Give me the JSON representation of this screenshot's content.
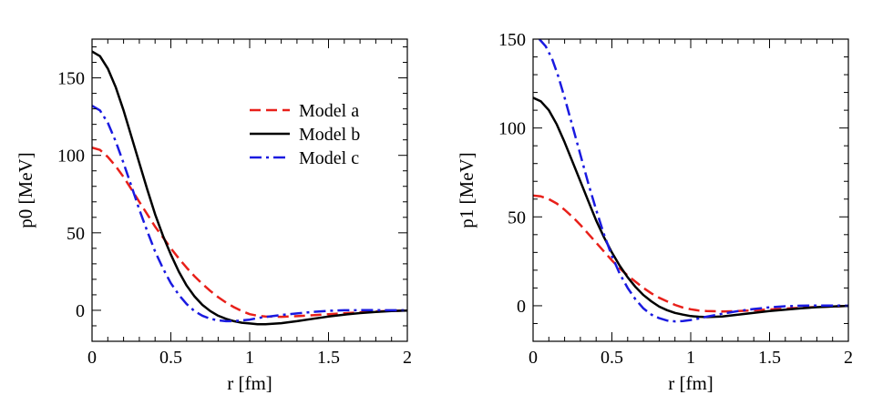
{
  "chart_data": [
    {
      "type": "line",
      "xlabel": "r [fm]",
      "ylabel": "p0 [MeV]",
      "xlim": [
        0,
        2
      ],
      "ylim": [
        -20,
        175
      ],
      "xticks": [
        0,
        0.5,
        1,
        1.5,
        2
      ],
      "xtick_labels": [
        "0",
        "0.5",
        "1",
        "1.5",
        "2"
      ],
      "yticks": [
        0,
        50,
        100,
        150
      ],
      "ytick_labels": [
        "0",
        "50",
        "100",
        "150"
      ],
      "grid": false,
      "legend": {
        "placement": "top-right"
      },
      "series": [
        {
          "name": "Model a",
          "color": "#e8201a",
          "dash": "dashed",
          "x": [
            0,
            0.05,
            0.1,
            0.15,
            0.2,
            0.25,
            0.3,
            0.35,
            0.4,
            0.45,
            0.5,
            0.55,
            0.6,
            0.65,
            0.7,
            0.75,
            0.8,
            0.85,
            0.9,
            0.95,
            1.0,
            1.05,
            1.1,
            1.2,
            1.3,
            1.4,
            1.5,
            1.6,
            1.7,
            1.8,
            1.9,
            2.0
          ],
          "y": [
            105,
            103.5,
            99,
            93,
            86,
            78,
            70,
            62,
            54,
            47,
            40,
            33.5,
            27.5,
            22,
            17,
            12.5,
            8.5,
            5,
            2,
            -0.5,
            -2.5,
            -3.5,
            -4,
            -4.2,
            -3.8,
            -3.2,
            -2.5,
            -1.9,
            -1.3,
            -0.8,
            -0.4,
            -0.1
          ]
        },
        {
          "name": "Model b",
          "color": "#000000",
          "dash": "solid",
          "x": [
            0,
            0.05,
            0.1,
            0.15,
            0.2,
            0.25,
            0.3,
            0.35,
            0.4,
            0.45,
            0.5,
            0.55,
            0.6,
            0.65,
            0.7,
            0.75,
            0.8,
            0.85,
            0.9,
            0.95,
            1.0,
            1.05,
            1.1,
            1.2,
            1.3,
            1.4,
            1.5,
            1.6,
            1.7,
            1.8,
            1.9,
            2.0
          ],
          "y": [
            167,
            164,
            156,
            144,
            129,
            112,
            95,
            78,
            62,
            48,
            36,
            25,
            16,
            9,
            3.5,
            -0.5,
            -3.5,
            -5.5,
            -7,
            -8,
            -8.5,
            -9,
            -9,
            -8.3,
            -7,
            -5.5,
            -4,
            -2.8,
            -1.8,
            -1,
            -0.5,
            -0.2
          ]
        },
        {
          "name": "Model c",
          "color": "#1a1ae0",
          "dash": "dashdot",
          "x": [
            0,
            0.05,
            0.1,
            0.15,
            0.2,
            0.25,
            0.3,
            0.35,
            0.4,
            0.45,
            0.5,
            0.55,
            0.6,
            0.65,
            0.7,
            0.75,
            0.8,
            0.85,
            0.9,
            0.95,
            1.0,
            1.05,
            1.1,
            1.2,
            1.3,
            1.4,
            1.5,
            1.6,
            1.7,
            1.8,
            1.9,
            2.0
          ],
          "y": [
            132,
            129,
            121,
            109,
            95,
            80,
            65,
            51,
            38,
            27,
            17.5,
            10,
            4,
            -0.5,
            -3.5,
            -5.5,
            -6.5,
            -7,
            -7,
            -6.5,
            -6,
            -5,
            -4.3,
            -3,
            -2,
            -1,
            -0.3,
            0,
            0.1,
            0.1,
            0,
            0
          ]
        }
      ]
    },
    {
      "type": "line",
      "xlabel": "r [fm]",
      "ylabel": "p1 [MeV]",
      "xlim": [
        0,
        2
      ],
      "ylim": [
        -20,
        150
      ],
      "xticks": [
        0,
        0.5,
        1,
        1.5,
        2
      ],
      "xtick_labels": [
        "0",
        "0.5",
        "1",
        "1.5",
        "2"
      ],
      "yticks": [
        0,
        50,
        100,
        150
      ],
      "ytick_labels": [
        "0",
        "50",
        "100",
        "150"
      ],
      "grid": false,
      "series": [
        {
          "color": "#e8201a",
          "dash": "dashed",
          "x": [
            0,
            0.05,
            0.1,
            0.15,
            0.2,
            0.25,
            0.3,
            0.35,
            0.4,
            0.45,
            0.5,
            0.55,
            0.6,
            0.65,
            0.7,
            0.75,
            0.8,
            0.85,
            0.9,
            0.95,
            1.0,
            1.05,
            1.1,
            1.2,
            1.3,
            1.4,
            1.5,
            1.6,
            1.7,
            1.8,
            1.9,
            2.0
          ],
          "y": [
            62,
            61.5,
            60,
            57.5,
            54,
            50,
            45.5,
            40.5,
            35.5,
            30.5,
            25.5,
            21,
            17,
            13.5,
            10,
            7,
            4.5,
            2.5,
            0.5,
            -1,
            -2,
            -2.7,
            -3,
            -3.2,
            -3,
            -2.6,
            -2.1,
            -1.6,
            -1.1,
            -0.7,
            -0.4,
            -0.1
          ]
        },
        {
          "color": "#000000",
          "dash": "solid",
          "x": [
            0,
            0.05,
            0.1,
            0.15,
            0.2,
            0.25,
            0.3,
            0.35,
            0.4,
            0.45,
            0.5,
            0.55,
            0.6,
            0.65,
            0.7,
            0.75,
            0.8,
            0.85,
            0.9,
            0.95,
            1.0,
            1.05,
            1.1,
            1.2,
            1.3,
            1.4,
            1.5,
            1.6,
            1.7,
            1.8,
            1.9,
            2.0
          ],
          "y": [
            117,
            115,
            110,
            102,
            92,
            81,
            70,
            59,
            48,
            38.5,
            30,
            22.5,
            16,
            10.5,
            6,
            2.5,
            -0.5,
            -2.5,
            -4,
            -5,
            -5.8,
            -6.2,
            -6.4,
            -6,
            -5,
            -4,
            -3,
            -2.2,
            -1.4,
            -0.8,
            -0.4,
            -0.1
          ]
        },
        {
          "color": "#1a1ae0",
          "dash": "dashdot",
          "x": [
            0.04,
            0.08,
            0.12,
            0.16,
            0.2,
            0.25,
            0.3,
            0.35,
            0.4,
            0.45,
            0.5,
            0.55,
            0.6,
            0.65,
            0.7,
            0.75,
            0.8,
            0.85,
            0.9,
            0.95,
            1.0,
            1.05,
            1.1,
            1.2,
            1.3,
            1.4,
            1.5,
            1.6,
            1.7,
            1.8,
            1.9,
            2.0
          ],
          "y": [
            150,
            146,
            139,
            129,
            117,
            101,
            85,
            69,
            54,
            40,
            28,
            18,
            10,
            3.5,
            -1.5,
            -5,
            -7,
            -8.3,
            -8.8,
            -8.6,
            -8,
            -7.2,
            -6.2,
            -4.5,
            -3,
            -1.8,
            -0.9,
            -0.3,
            0,
            0.1,
            0.1,
            0
          ]
        }
      ]
    }
  ]
}
